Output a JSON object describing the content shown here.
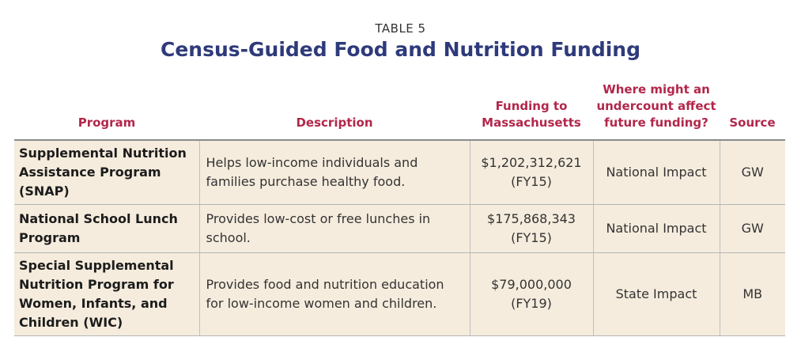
{
  "table_number": "TABLE 5",
  "title": "Census-Guided Food and Nutrition Funding",
  "headers": {
    "program": "Program",
    "description": "Description",
    "funding_line1": "Funding to",
    "funding_line2": "Massachusetts",
    "impact_line1": "Where might an",
    "impact_line2": "undercount affect",
    "impact_line3": "future funding?",
    "source": "Source"
  },
  "rows": [
    {
      "program": "Supplemental Nutrition Assistance Program (SNAP)",
      "description": "Helps low-income individuals and families purchase healthy food.",
      "funding_amount": "$1,202,312,621",
      "funding_year": "(FY15)",
      "impact": "National Impact",
      "source": "GW"
    },
    {
      "program": "National School Lunch Program",
      "description": "Provides low-cost or free lunches in school.",
      "funding_amount": "$175,868,343",
      "funding_year": "(FY15)",
      "impact": "National Impact",
      "source": "GW"
    },
    {
      "program": "Special Supplemental Nutrition Program for Women, Infants, and Children (WIC)",
      "description": "Provides food and nutrition education for low-income women and children.",
      "funding_amount": "$79,000,000",
      "funding_year": "(FY19)",
      "impact": "State Impact",
      "source": "MB"
    }
  ],
  "colors": {
    "title": "#2e3a7a",
    "header": "#b2274a",
    "row_background": "#f5ecdd"
  }
}
